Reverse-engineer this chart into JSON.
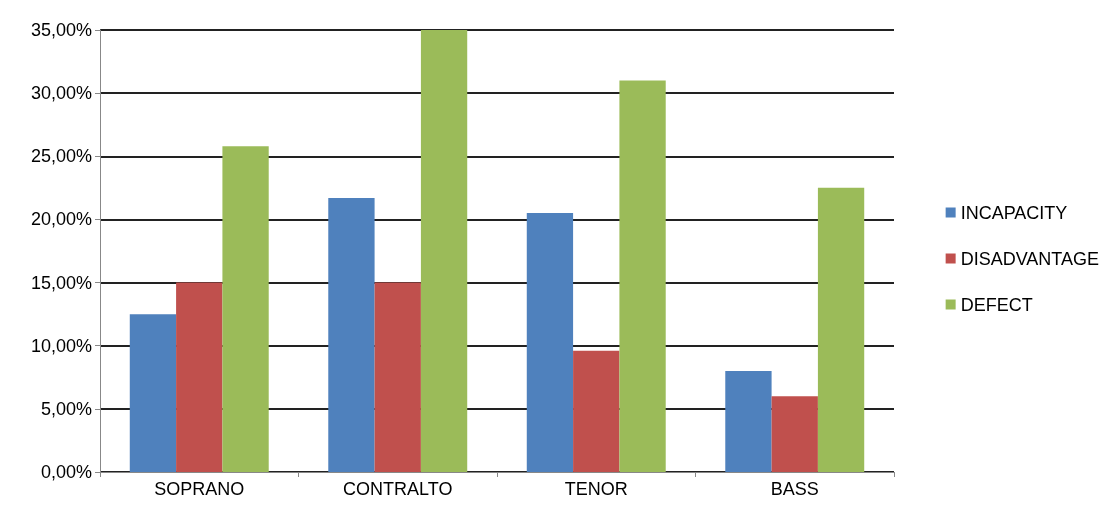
{
  "chart_data": {
    "type": "bar",
    "categories": [
      "SOPRANO",
      "CONTRALTO",
      "TENOR",
      "BASS"
    ],
    "series": [
      {
        "name": "INCAPACITY",
        "color": "#4f81bd",
        "values": [
          12.5,
          21.7,
          20.5,
          8
        ]
      },
      {
        "name": "DISADVANTAGE",
        "color": "#c0504d",
        "values": [
          15,
          15,
          9.6,
          6
        ]
      },
      {
        "name": "DEFECT",
        "color": "#9bbb59",
        "values": [
          25.8,
          35,
          31,
          22.5
        ]
      }
    ],
    "ylim": [
      0,
      35
    ],
    "yticks": [
      {
        "value": 0,
        "label": "0,00%"
      },
      {
        "value": 5,
        "label": "5,00%"
      },
      {
        "value": 10,
        "label": "10,00%"
      },
      {
        "value": 15,
        "label": "15,00%"
      },
      {
        "value": 20,
        "label": "20,00%"
      },
      {
        "value": 25,
        "label": "25,00%"
      },
      {
        "value": 30,
        "label": "30,00%"
      },
      {
        "value": 35,
        "label": "35,00%"
      }
    ],
    "grid": "y",
    "legend": "right"
  }
}
